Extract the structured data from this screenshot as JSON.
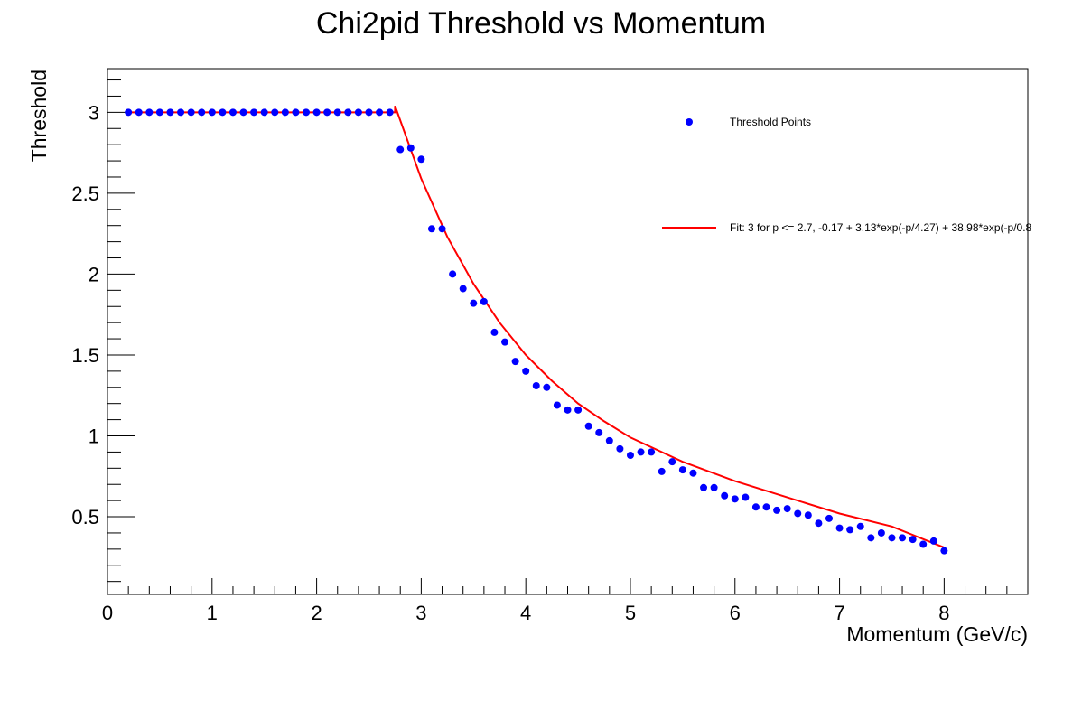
{
  "chart_data": {
    "type": "scatter",
    "title": "Chi2pid Threshold vs Momentum",
    "xlabel": "Momentum (GeV/c)",
    "ylabel": "Threshold",
    "xlim": [
      0,
      8.8
    ],
    "ylim": [
      0.02,
      3.27
    ],
    "x_ticks": [
      0,
      1,
      2,
      3,
      4,
      5,
      6,
      7,
      8
    ],
    "y_ticks": [
      0.5,
      1,
      1.5,
      2,
      2.5,
      3
    ],
    "x_tick_labels": [
      "0",
      "1",
      "2",
      "3",
      "4",
      "5",
      "6",
      "7",
      "8"
    ],
    "y_tick_labels": [
      "0.5",
      "1",
      "1.5",
      "2",
      "2.5",
      "3"
    ],
    "grid": false,
    "legend_position": "top-right",
    "legend": [
      {
        "label": "Threshold Points",
        "kind": "marker",
        "color": "#0000ff"
      },
      {
        "label": "Fit: 3 for p <= 2.7, -0.17 + 3.13*exp(-p/4.27) + 38.98*exp(-p/0.8",
        "kind": "line",
        "color": "#ff0000"
      }
    ],
    "series": [
      {
        "name": "Threshold Points",
        "kind": "points",
        "color": "#0000ff",
        "x": [
          0.2,
          0.3,
          0.4,
          0.5,
          0.6,
          0.7,
          0.8,
          0.9,
          1.0,
          1.1,
          1.2,
          1.3,
          1.4,
          1.5,
          1.6,
          1.7,
          1.8,
          1.9,
          2.0,
          2.1,
          2.2,
          2.3,
          2.4,
          2.5,
          2.6,
          2.7,
          2.8,
          2.9,
          3.0,
          3.1,
          3.2,
          3.3,
          3.4,
          3.5,
          3.6,
          3.7,
          3.8,
          3.9,
          4.0,
          4.1,
          4.2,
          4.3,
          4.4,
          4.5,
          4.6,
          4.7,
          4.8,
          4.9,
          5.0,
          5.1,
          5.2,
          5.3,
          5.4,
          5.5,
          5.6,
          5.7,
          5.8,
          5.9,
          6.0,
          6.1,
          6.2,
          6.3,
          6.4,
          6.5,
          6.6,
          6.7,
          6.8,
          6.9,
          7.0,
          7.1,
          7.2,
          7.3,
          7.4,
          7.5,
          7.6,
          7.7,
          7.8,
          7.9,
          8.0
        ],
        "y": [
          3.0,
          3.0,
          3.0,
          3.0,
          3.0,
          3.0,
          3.0,
          3.0,
          3.0,
          3.0,
          3.0,
          3.0,
          3.0,
          3.0,
          3.0,
          3.0,
          3.0,
          3.0,
          3.0,
          3.0,
          3.0,
          3.0,
          3.0,
          3.0,
          3.0,
          3.0,
          2.77,
          2.78,
          2.71,
          2.28,
          2.28,
          2.0,
          1.91,
          1.82,
          1.83,
          1.64,
          1.58,
          1.46,
          1.4,
          1.31,
          1.3,
          1.19,
          1.16,
          1.16,
          1.06,
          1.02,
          0.97,
          0.92,
          0.88,
          0.9,
          0.9,
          0.78,
          0.84,
          0.79,
          0.77,
          0.68,
          0.68,
          0.63,
          0.61,
          0.62,
          0.56,
          0.56,
          0.54,
          0.55,
          0.52,
          0.51,
          0.46,
          0.49,
          0.43,
          0.42,
          0.44,
          0.37,
          0.4,
          0.37,
          0.37,
          0.36,
          0.33,
          0.35,
          0.29
        ]
      },
      {
        "name": "Fit: 3 for p <= 2.7, -0.17 + 3.13*exp(-p/4.27) + 38.98*exp(-p/0.8",
        "kind": "line",
        "color": "#ff0000",
        "x": [
          0.2,
          2.75,
          2.75,
          3.0,
          3.25,
          3.5,
          3.75,
          4.0,
          4.25,
          4.5,
          4.75,
          5.0,
          5.5,
          6.0,
          6.5,
          7.0,
          7.5,
          8.0
        ],
        "y": [
          3.0,
          3.0,
          3.04,
          2.59,
          2.23,
          1.94,
          1.7,
          1.5,
          1.34,
          1.2,
          1.09,
          0.99,
          0.84,
          0.72,
          0.62,
          0.52,
          0.44,
          0.31
        ]
      }
    ]
  }
}
